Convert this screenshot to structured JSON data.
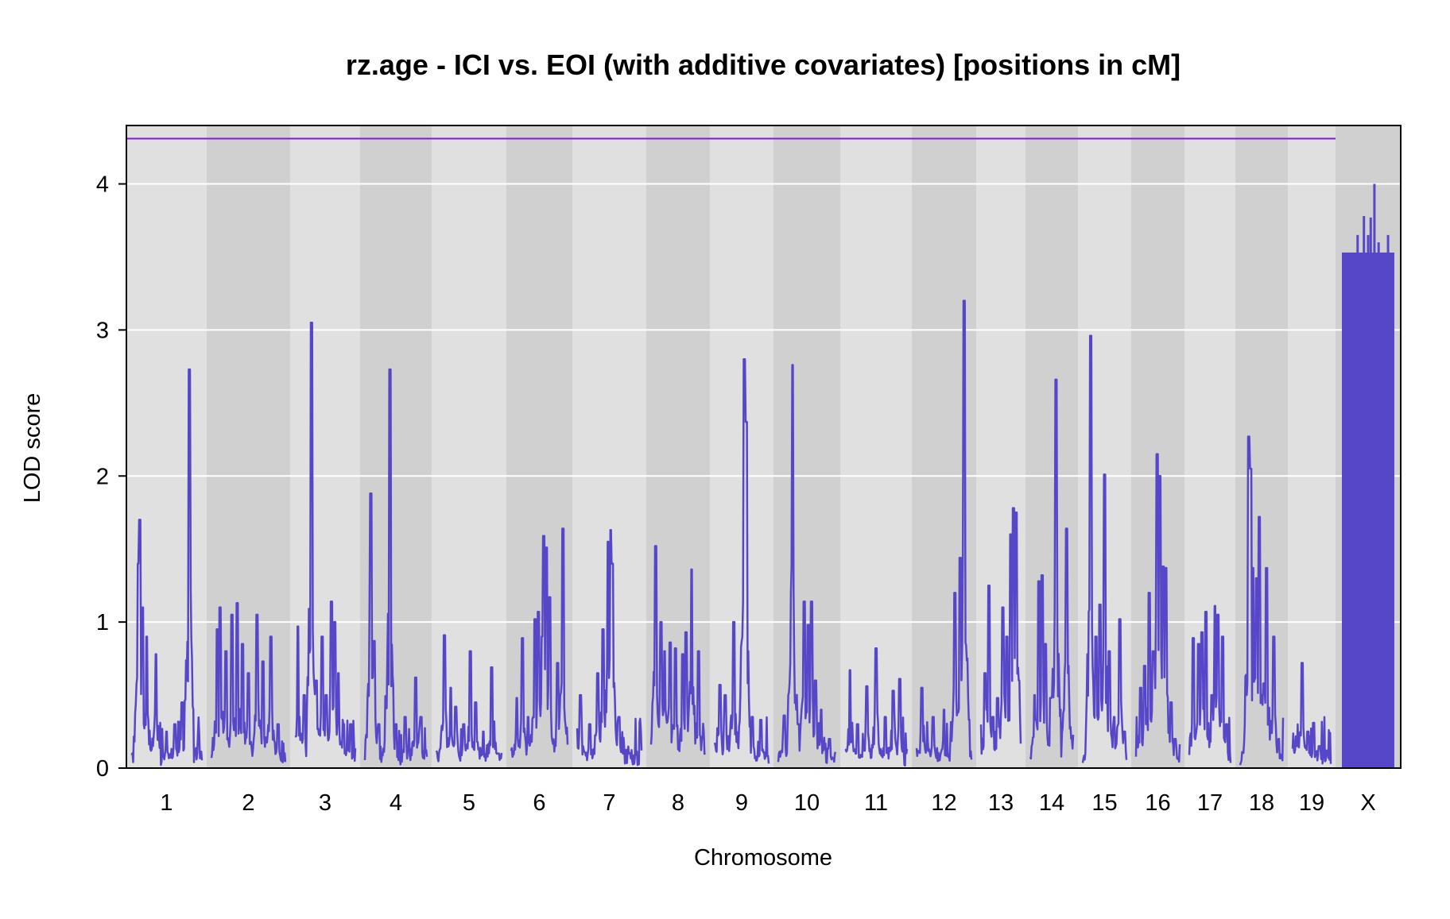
{
  "chart_data": {
    "type": "line",
    "title": "rz.age - ICI vs. EOI (with additive covariates) [positions in cM]",
    "xlabel": "Chromosome",
    "ylabel": "LOD score",
    "ylim": [
      0,
      4.4
    ],
    "yticks": [
      "0",
      "1",
      "2",
      "3",
      "4"
    ],
    "grid": true,
    "background_bands": "alternating light/dark gray per chromosome",
    "line_color": "#5646c8",
    "threshold": {
      "value": 4.31,
      "color": "#7b1fd1"
    },
    "chromosomes": [
      {
        "label": "1",
        "peaks": [
          [
            0.1,
            1.4
          ],
          [
            0.12,
            1.7
          ],
          [
            0.16,
            1.1
          ],
          [
            0.22,
            0.9
          ],
          [
            0.35,
            0.78
          ],
          [
            0.5,
            0.25
          ],
          [
            0.62,
            0.3
          ],
          [
            0.72,
            0.45
          ],
          [
            0.82,
            2.73
          ],
          [
            0.95,
            0.22
          ]
        ]
      },
      {
        "label": "2",
        "peaks": [
          [
            0.08,
            0.95
          ],
          [
            0.12,
            1.1
          ],
          [
            0.2,
            0.8
          ],
          [
            0.28,
            1.05
          ],
          [
            0.35,
            1.13
          ],
          [
            0.42,
            0.85
          ],
          [
            0.5,
            0.65
          ],
          [
            0.62,
            1.05
          ],
          [
            0.7,
            0.73
          ],
          [
            0.8,
            0.9
          ],
          [
            0.9,
            0.3
          ]
        ]
      },
      {
        "label": "3",
        "peaks": [
          [
            0.05,
            0.97
          ],
          [
            0.15,
            0.5
          ],
          [
            0.27,
            3.05
          ],
          [
            0.35,
            0.6
          ],
          [
            0.45,
            0.9
          ],
          [
            0.52,
            0.5
          ],
          [
            0.6,
            1.14
          ],
          [
            0.66,
            1.0
          ],
          [
            0.72,
            0.65
          ],
          [
            0.8,
            0.3
          ],
          [
            0.92,
            0.3
          ]
        ]
      },
      {
        "label": "4",
        "peaks": [
          [
            0.08,
            1.1
          ],
          [
            0.1,
            1.88
          ],
          [
            0.15,
            0.87
          ],
          [
            0.22,
            0.3
          ],
          [
            0.4,
            2.73
          ],
          [
            0.5,
            0.3
          ],
          [
            0.65,
            0.35
          ],
          [
            0.82,
            0.62
          ],
          [
            0.9,
            0.35
          ]
        ]
      },
      {
        "label": "5",
        "peaks": [
          [
            0.12,
            0.91
          ],
          [
            0.22,
            0.55
          ],
          [
            0.3,
            0.42
          ],
          [
            0.42,
            0.3
          ],
          [
            0.52,
            0.8
          ],
          [
            0.6,
            0.45
          ],
          [
            0.72,
            0.25
          ],
          [
            0.85,
            0.69
          ],
          [
            0.95,
            0.1
          ]
        ]
      },
      {
        "label": "6",
        "peaks": [
          [
            0.1,
            0.48
          ],
          [
            0.2,
            0.89
          ],
          [
            0.3,
            0.35
          ],
          [
            0.42,
            1.02
          ],
          [
            0.48,
            1.07
          ],
          [
            0.55,
            0.9
          ],
          [
            0.58,
            1.59
          ],
          [
            0.62,
            1.51
          ],
          [
            0.68,
            1.17
          ],
          [
            0.82,
            0.72
          ],
          [
            0.92,
            1.64
          ]
        ]
      },
      {
        "label": "7",
        "peaks": [
          [
            0.05,
            0.5
          ],
          [
            0.2,
            0.3
          ],
          [
            0.32,
            0.65
          ],
          [
            0.4,
            0.95
          ],
          [
            0.48,
            1.55
          ],
          [
            0.52,
            1.63
          ],
          [
            0.55,
            1.4
          ],
          [
            0.65,
            0.35
          ],
          [
            0.8,
            0.1
          ]
        ]
      },
      {
        "label": "8",
        "peaks": [
          [
            0.08,
            1.52
          ],
          [
            0.18,
            1.0
          ],
          [
            0.25,
            0.8
          ],
          [
            0.35,
            0.86
          ],
          [
            0.45,
            0.82
          ],
          [
            0.58,
            0.78
          ],
          [
            0.65,
            0.93
          ],
          [
            0.75,
            1.36
          ],
          [
            0.88,
            0.8
          ],
          [
            0.95,
            0.2
          ]
        ]
      },
      {
        "label": "9",
        "peaks": [
          [
            0.1,
            0.57
          ],
          [
            0.2,
            0.5
          ],
          [
            0.35,
            1.0
          ],
          [
            0.5,
            0.83
          ],
          [
            0.55,
            2.8
          ],
          [
            0.58,
            2.37
          ],
          [
            0.7,
            0.35
          ],
          [
            0.85,
            0.33
          ]
        ]
      },
      {
        "label": "10",
        "peaks": [
          [
            0.1,
            0.36
          ],
          [
            0.25,
            2.76
          ],
          [
            0.35,
            0.3
          ],
          [
            0.45,
            1.14
          ],
          [
            0.52,
            0.98
          ],
          [
            0.58,
            1.14
          ],
          [
            0.65,
            0.6
          ],
          [
            0.75,
            0.4
          ],
          [
            0.9,
            0.2
          ]
        ]
      },
      {
        "label": "11",
        "peaks": [
          [
            0.08,
            0.67
          ],
          [
            0.2,
            0.3
          ],
          [
            0.35,
            0.56
          ],
          [
            0.5,
            0.82
          ],
          [
            0.65,
            0.35
          ],
          [
            0.78,
            0.53
          ],
          [
            0.88,
            0.61
          ]
        ]
      },
      {
        "label": "12",
        "peaks": [
          [
            0.1,
            0.55
          ],
          [
            0.3,
            0.35
          ],
          [
            0.5,
            0.4
          ],
          [
            0.7,
            1.2
          ],
          [
            0.8,
            1.44
          ],
          [
            0.87,
            3.2
          ],
          [
            0.92,
            0.5
          ]
        ]
      },
      {
        "label": "13",
        "peaks": [
          [
            0.1,
            0.65
          ],
          [
            0.2,
            1.25
          ],
          [
            0.3,
            0.35
          ],
          [
            0.42,
            0.48
          ],
          [
            0.55,
            1.1
          ],
          [
            0.65,
            0.9
          ],
          [
            0.75,
            1.6
          ],
          [
            0.82,
            1.78
          ],
          [
            0.88,
            1.75
          ],
          [
            0.95,
            0.6
          ]
        ]
      },
      {
        "label": "14",
        "peaks": [
          [
            0.1,
            0.5
          ],
          [
            0.2,
            1.28
          ],
          [
            0.28,
            1.32
          ],
          [
            0.35,
            0.85
          ],
          [
            0.48,
            0.48
          ],
          [
            0.6,
            2.66
          ],
          [
            0.7,
            0.35
          ],
          [
            0.85,
            1.64
          ],
          [
            0.95,
            0.2
          ]
        ]
      },
      {
        "label": "15",
        "peaks": [
          [
            0.1,
            0.25
          ],
          [
            0.18,
            2.96
          ],
          [
            0.3,
            0.9
          ],
          [
            0.4,
            1.12
          ],
          [
            0.5,
            2.01
          ],
          [
            0.6,
            0.8
          ],
          [
            0.72,
            0.35
          ],
          [
            0.85,
            1.02
          ],
          [
            0.95,
            0.25
          ]
        ]
      },
      {
        "label": "16",
        "peaks": [
          [
            0.1,
            0.55
          ],
          [
            0.2,
            0.7
          ],
          [
            0.3,
            1.2
          ],
          [
            0.4,
            0.8
          ],
          [
            0.48,
            2.15
          ],
          [
            0.55,
            2.0
          ],
          [
            0.62,
            1.38
          ],
          [
            0.68,
            1.37
          ],
          [
            0.8,
            0.45
          ],
          [
            0.9,
            0.2
          ]
        ]
      },
      {
        "label": "17",
        "peaks": [
          [
            0.1,
            0.89
          ],
          [
            0.22,
            0.85
          ],
          [
            0.3,
            0.93
          ],
          [
            0.4,
            1.07
          ],
          [
            0.55,
            0.5
          ],
          [
            0.62,
            1.11
          ],
          [
            0.7,
            1.05
          ],
          [
            0.8,
            0.9
          ],
          [
            0.9,
            0.3
          ]
        ]
      },
      {
        "label": "18",
        "peaks": [
          [
            0.15,
            0.5
          ],
          [
            0.2,
            2.27
          ],
          [
            0.24,
            2.05
          ],
          [
            0.3,
            1.37
          ],
          [
            0.38,
            1.3
          ],
          [
            0.45,
            1.72
          ],
          [
            0.55,
            0.58
          ],
          [
            0.62,
            1.37
          ],
          [
            0.78,
            0.9
          ],
          [
            0.9,
            0.2
          ]
        ]
      },
      {
        "label": "19",
        "peaks": [
          [
            0.1,
            0.15
          ],
          [
            0.25,
            0.72
          ],
          [
            0.4,
            0.25
          ],
          [
            0.55,
            0.31
          ],
          [
            0.7,
            0.15
          ],
          [
            0.9,
            0.12
          ]
        ]
      },
      {
        "label": "X",
        "baseline": 3.53,
        "peaks": [
          [
            0.1,
            3.53
          ],
          [
            0.3,
            3.65
          ],
          [
            0.42,
            3.78
          ],
          [
            0.5,
            3.65
          ],
          [
            0.55,
            3.77
          ],
          [
            0.62,
            4.0
          ],
          [
            0.7,
            3.6
          ],
          [
            0.88,
            3.65
          ]
        ]
      }
    ]
  }
}
